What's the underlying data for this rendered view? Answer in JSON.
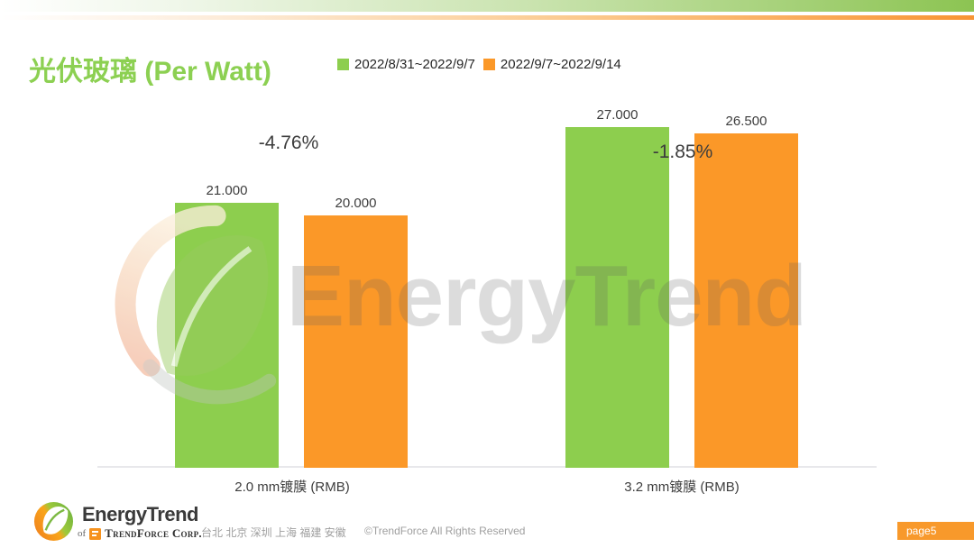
{
  "slide": {
    "title": "光伏玻璃 (Per Watt)"
  },
  "chart_data": {
    "type": "bar",
    "title": "光伏玻璃 (Per Watt)",
    "categories": [
      "2.0 mm镀膜 (RMB)",
      "3.2 mm镀膜 (RMB)"
    ],
    "series": [
      {
        "name": "2022/8/31~2022/9/7",
        "color": "#8DCE4E",
        "values": [
          21.0,
          27.0
        ],
        "value_labels": [
          "21.000",
          "27.000"
        ]
      },
      {
        "name": "2022/9/7~2022/9/14",
        "color": "#FB9828",
        "values": [
          20.0,
          26.5
        ],
        "value_labels": [
          "20.000",
          "26.500"
        ]
      }
    ],
    "change_annotations": [
      "-4.76%",
      "-1.85%"
    ],
    "ylim": [
      0,
      28
    ],
    "grid": false,
    "legend_position": "top",
    "baseline_color": "#E8E8EB"
  },
  "watermark": {
    "text": "EnergyTrend"
  },
  "footer": {
    "brand": "EnergyTrend",
    "brand_sub_prefix": "of",
    "brand_sub": "TrendForce Corp.",
    "locations": "台北 北京 深圳 上海 福建 安徽",
    "copyright": "©TrendForce All Rights Reserved",
    "page_badge": "page5"
  },
  "theme": {
    "title_green": "#8CD052",
    "accent_green": "#8CC452",
    "accent_orange": "#F89434",
    "badge_orange": "#F8992B",
    "text_dark": "#3D3D3D",
    "text_gray": "#9F9F9F"
  }
}
